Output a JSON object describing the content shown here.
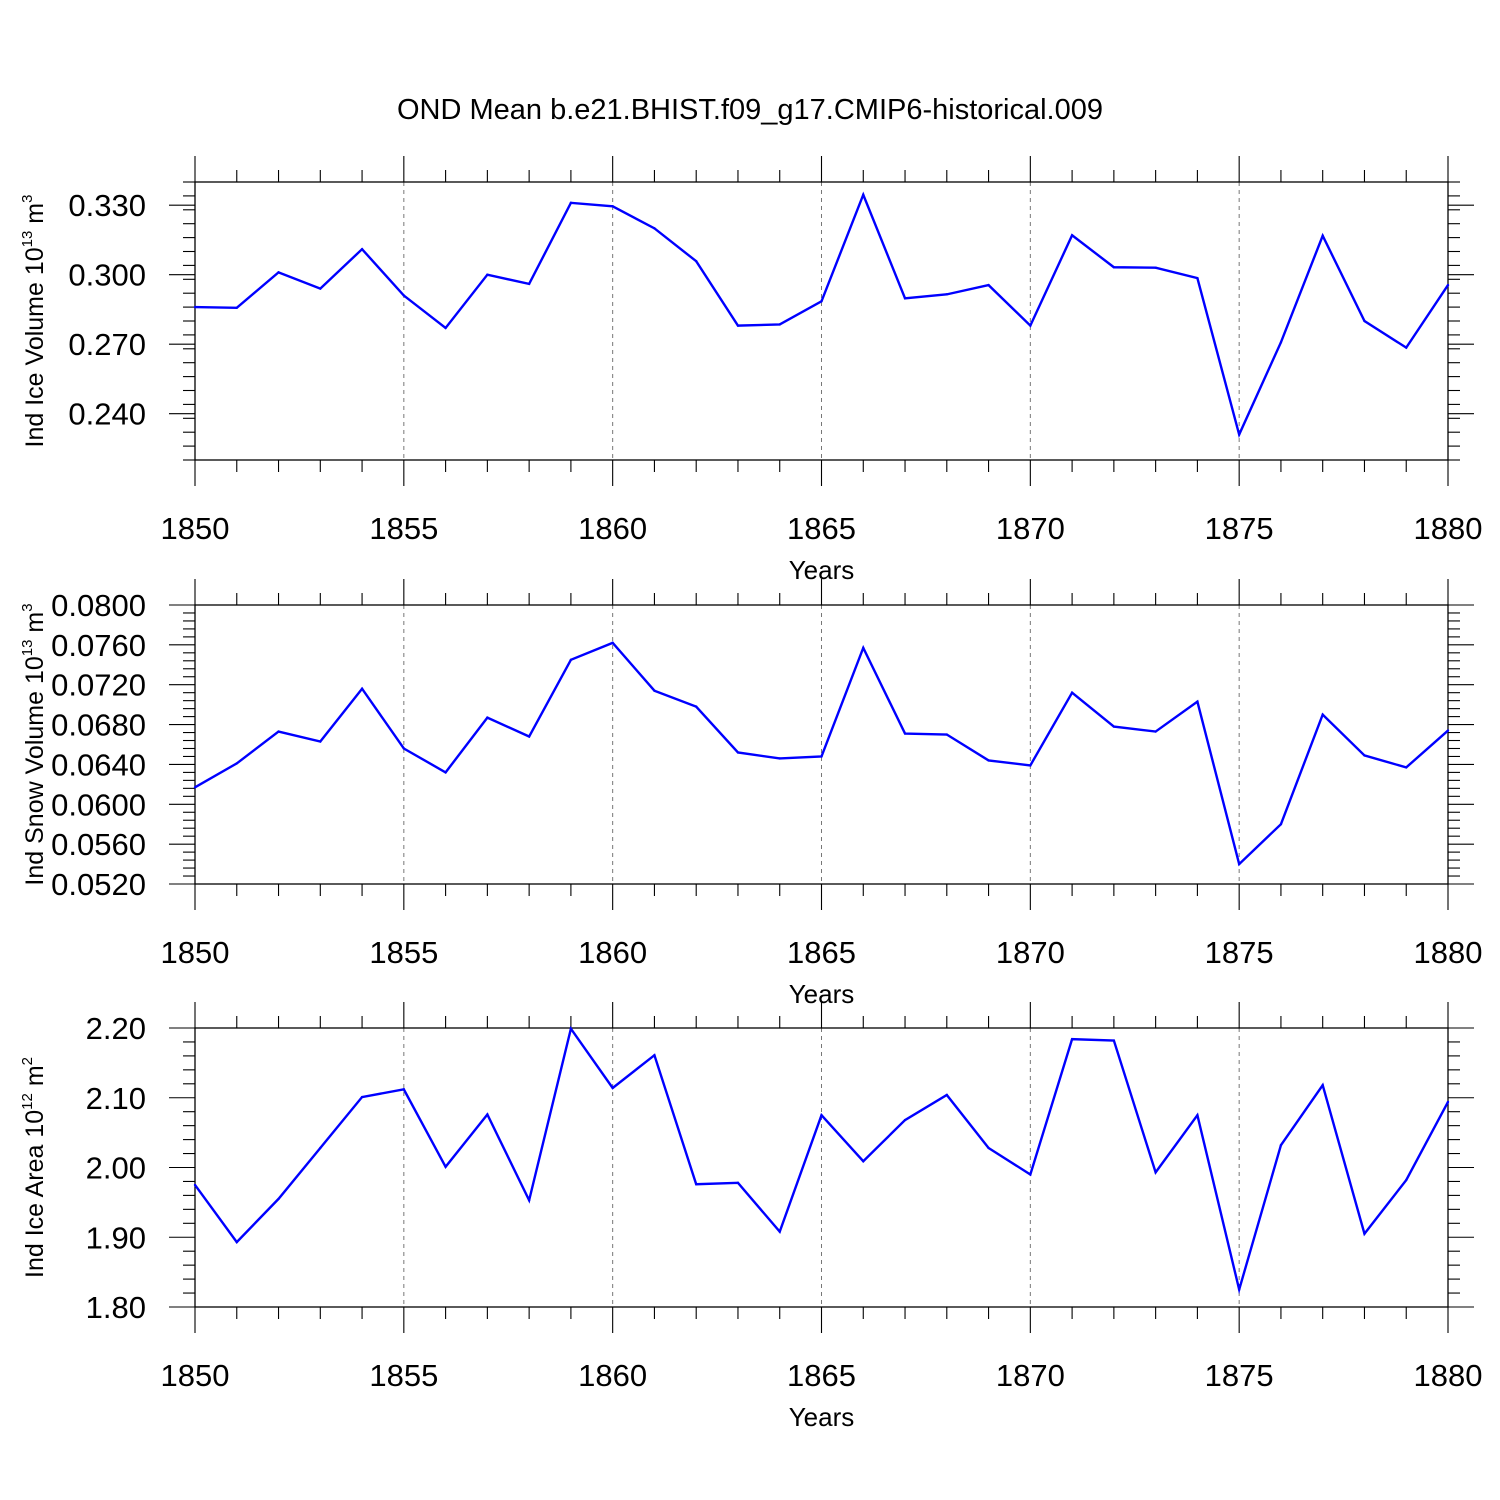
{
  "figure": {
    "title": "OND Mean b.e21.BHIST.f09_g17.CMIP6-historical.009",
    "line_color": "#0000ff"
  },
  "chart_data": [
    {
      "type": "line",
      "title": "",
      "xlabel": "Years",
      "ylabel_main": "Ind Ice Volume 10",
      "ylabel_exp": "13",
      "ylabel_unit": " m",
      "ylabel_unit_exp": "3",
      "xlim": [
        1850,
        1880
      ],
      "ylim": [
        0.22,
        0.34
      ],
      "xticks": [
        1850,
        1855,
        1860,
        1865,
        1870,
        1875,
        1880
      ],
      "yticks": [
        "0.240",
        "0.270",
        "0.300",
        "0.330"
      ],
      "ytick_values": [
        0.24,
        0.27,
        0.3,
        0.33
      ],
      "yminor_step": 0.006,
      "grid_x": true,
      "x": [
        1850,
        1851,
        1852,
        1853,
        1854,
        1855,
        1856,
        1857,
        1858,
        1859,
        1860,
        1861,
        1862,
        1863,
        1864,
        1865,
        1866,
        1867,
        1868,
        1869,
        1870,
        1871,
        1872,
        1873,
        1874,
        1875,
        1876,
        1877,
        1878,
        1879,
        1880
      ],
      "series": [
        {
          "name": "Ind Ice Volume",
          "values": [
            0.286,
            0.2857,
            0.301,
            0.294,
            0.311,
            0.291,
            0.277,
            0.3,
            0.296,
            0.331,
            0.3295,
            0.32,
            0.3058,
            0.278,
            0.2785,
            0.2885,
            0.3345,
            0.2898,
            0.2915,
            0.2955,
            0.278,
            0.317,
            0.3032,
            0.303,
            0.2985,
            0.231,
            0.2708,
            0.3168,
            0.28,
            0.2685,
            0.2955
          ]
        }
      ]
    },
    {
      "type": "line",
      "title": "",
      "xlabel": "Years",
      "ylabel_main": "Ind Snow Volume 10",
      "ylabel_exp": "13",
      "ylabel_unit": " m",
      "ylabel_unit_exp": "3",
      "xlim": [
        1850,
        1880
      ],
      "ylim": [
        0.052,
        0.08
      ],
      "xticks": [
        1850,
        1855,
        1860,
        1865,
        1870,
        1875,
        1880
      ],
      "yticks": [
        "0.0520",
        "0.0560",
        "0.0600",
        "0.0640",
        "0.0680",
        "0.0720",
        "0.0760",
        "0.0800"
      ],
      "ytick_values": [
        0.052,
        0.056,
        0.06,
        0.064,
        0.068,
        0.072,
        0.076,
        0.08
      ],
      "yminor_step": 0.0008,
      "grid_x": true,
      "x": [
        1850,
        1851,
        1852,
        1853,
        1854,
        1855,
        1856,
        1857,
        1858,
        1859,
        1860,
        1861,
        1862,
        1863,
        1864,
        1865,
        1866,
        1867,
        1868,
        1869,
        1870,
        1871,
        1872,
        1873,
        1874,
        1875,
        1876,
        1877,
        1878,
        1879,
        1880
      ],
      "series": [
        {
          "name": "Ind Snow Volume",
          "values": [
            0.0617,
            0.0641,
            0.0673,
            0.0663,
            0.0716,
            0.0656,
            0.0632,
            0.0687,
            0.0668,
            0.0745,
            0.0762,
            0.0714,
            0.0698,
            0.0652,
            0.0646,
            0.0648,
            0.0757,
            0.0671,
            0.067,
            0.0644,
            0.0639,
            0.0712,
            0.0678,
            0.0673,
            0.0703,
            0.054,
            0.058,
            0.069,
            0.0649,
            0.0637,
            0.0674
          ]
        }
      ]
    },
    {
      "type": "line",
      "title": "",
      "xlabel": "Years",
      "ylabel_main": "Ind Ice Area 10",
      "ylabel_exp": "12",
      "ylabel_unit": " m",
      "ylabel_unit_exp": "2",
      "xlim": [
        1850,
        1880
      ],
      "ylim": [
        1.8,
        2.2
      ],
      "xticks": [
        1850,
        1855,
        1860,
        1865,
        1870,
        1875,
        1880
      ],
      "yticks": [
        "1.80",
        "1.90",
        "2.00",
        "2.10",
        "2.20"
      ],
      "ytick_values": [
        1.8,
        1.9,
        2.0,
        2.1,
        2.2
      ],
      "yminor_step": 0.02,
      "grid_x": true,
      "x": [
        1850,
        1851,
        1852,
        1853,
        1854,
        1855,
        1856,
        1857,
        1858,
        1859,
        1860,
        1861,
        1862,
        1863,
        1864,
        1865,
        1866,
        1867,
        1868,
        1869,
        1870,
        1871,
        1872,
        1873,
        1874,
        1875,
        1876,
        1877,
        1878,
        1879,
        1880
      ],
      "series": [
        {
          "name": "Ind Ice Area",
          "values": [
            1.975,
            1.893,
            1.955,
            2.028,
            2.101,
            2.112,
            2.001,
            2.076,
            1.953,
            2.199,
            2.114,
            2.161,
            1.976,
            1.978,
            1.908,
            2.075,
            2.009,
            2.068,
            2.104,
            2.028,
            1.99,
            2.184,
            2.182,
            1.993,
            2.075,
            1.825,
            2.032,
            2.118,
            1.905,
            1.982,
            2.094
          ]
        }
      ]
    }
  ]
}
